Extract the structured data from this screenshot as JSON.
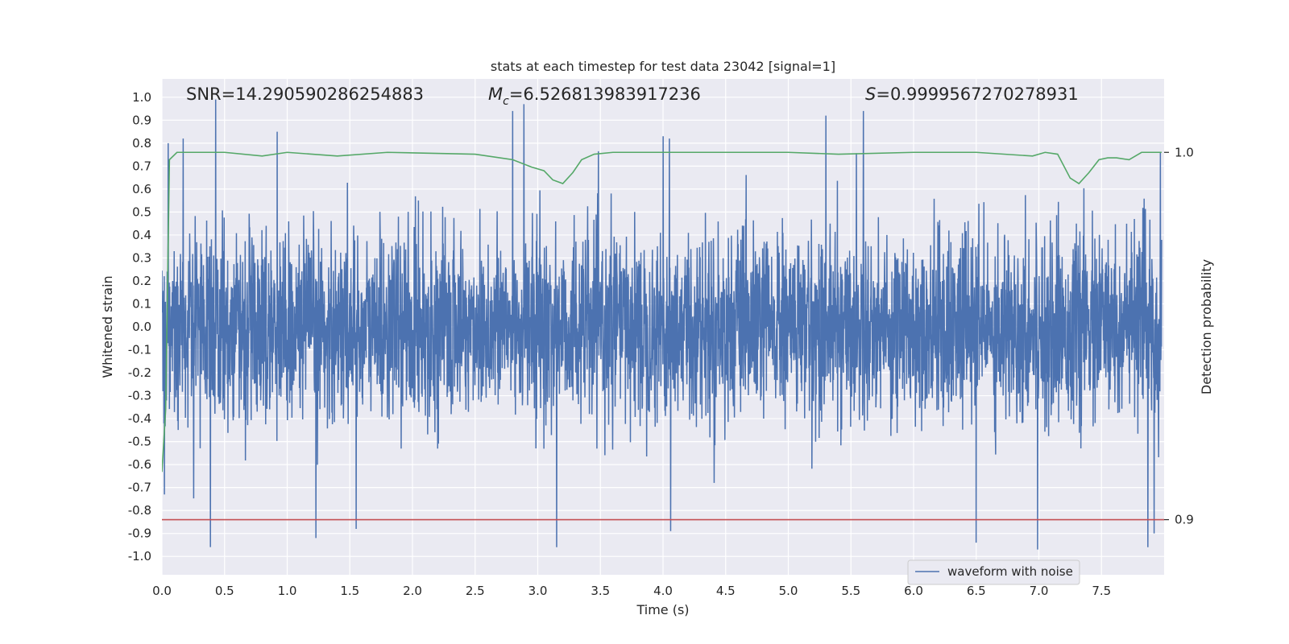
{
  "chart_data": {
    "type": "line",
    "title": "stats at each timestep for test data 23042 [signal=1]",
    "xlabel": "Time (s)",
    "ylabel": "Whitened strain",
    "y2label": "Detection probability",
    "xlim": [
      0.0,
      8.0
    ],
    "ylim": [
      -1.08,
      1.08
    ],
    "y2lim": [
      0.885,
      1.02
    ],
    "xticks": [
      "0.0",
      "0.5",
      "1.0",
      "1.5",
      "2.0",
      "2.5",
      "3.0",
      "3.5",
      "4.0",
      "4.5",
      "5.0",
      "5.5",
      "6.0",
      "6.5",
      "7.0",
      "7.5"
    ],
    "yticks": [
      "1.0",
      "0.9",
      "0.8",
      "0.7",
      "0.6",
      "0.5",
      "0.4",
      "0.3",
      "0.2",
      "0.1",
      "0.0",
      "-0.1",
      "-0.2",
      "-0.3",
      "-0.4",
      "-0.5",
      "-0.6",
      "-0.7",
      "-0.8",
      "-0.9",
      "-1.0"
    ],
    "y2ticks": [
      "1.0",
      "0.9"
    ],
    "grid": true,
    "legend_position": "lower-right",
    "annotations": {
      "snr": "SNR=14.290590286254883",
      "mc_symbol": "M",
      "mc_sub": "c",
      "mc_value": "=6.526813983917236",
      "s_symbol": "S",
      "s_value": "=0.9999567270278931"
    },
    "series": [
      {
        "name": "waveform with noise",
        "axis": "left",
        "color": "#4c72b0",
        "envelope_note_free": true,
        "noise_std": 0.2,
        "peaks_up": [
          [
            0.43,
            1.0
          ],
          [
            0.05,
            0.8
          ],
          [
            0.17,
            0.82
          ],
          [
            0.92,
            0.85
          ],
          [
            2.8,
            0.94
          ],
          [
            2.89,
            0.97
          ],
          [
            4.0,
            0.83
          ],
          [
            4.05,
            0.82
          ],
          [
            5.3,
            0.92
          ],
          [
            5.6,
            0.94
          ],
          [
            7.97,
            0.76
          ]
        ],
        "peaks_down": [
          [
            1.23,
            -0.92
          ],
          [
            1.55,
            -0.88
          ],
          [
            3.15,
            -0.96
          ],
          [
            4.06,
            -0.89
          ],
          [
            6.5,
            -0.94
          ],
          [
            6.99,
            -0.97
          ],
          [
            7.87,
            -0.96
          ],
          [
            7.92,
            -0.9
          ],
          [
            0.02,
            -0.73
          ]
        ]
      },
      {
        "name": "",
        "axis": "right",
        "color": "#55a868",
        "x": [
          0.0,
          0.03,
          0.06,
          0.12,
          0.2,
          0.5,
          0.8,
          1.0,
          1.4,
          1.8,
          2.5,
          2.8,
          2.95,
          3.05,
          3.12,
          3.2,
          3.28,
          3.35,
          3.45,
          3.6,
          4.0,
          5.0,
          5.4,
          6.0,
          6.5,
          6.95,
          7.05,
          7.15,
          7.25,
          7.32,
          7.4,
          7.48,
          7.55,
          7.62,
          7.72,
          7.82,
          7.98
        ],
        "y": [
          0.913,
          0.93,
          0.998,
          1.0,
          1.0,
          1.0,
          0.999,
          1.0,
          0.999,
          1.0,
          0.9995,
          0.998,
          0.996,
          0.995,
          0.9925,
          0.9915,
          0.9945,
          0.998,
          0.9995,
          1.0,
          1.0,
          1.0,
          0.9995,
          1.0,
          1.0,
          0.999,
          1.0,
          0.9995,
          0.993,
          0.9915,
          0.9945,
          0.998,
          0.9985,
          0.9985,
          0.998,
          1.0,
          1.0
        ]
      },
      {
        "name": "",
        "axis": "right",
        "color": "#c44e52",
        "x": [
          0.0,
          8.0
        ],
        "y": [
          0.9,
          0.9
        ]
      }
    ]
  }
}
